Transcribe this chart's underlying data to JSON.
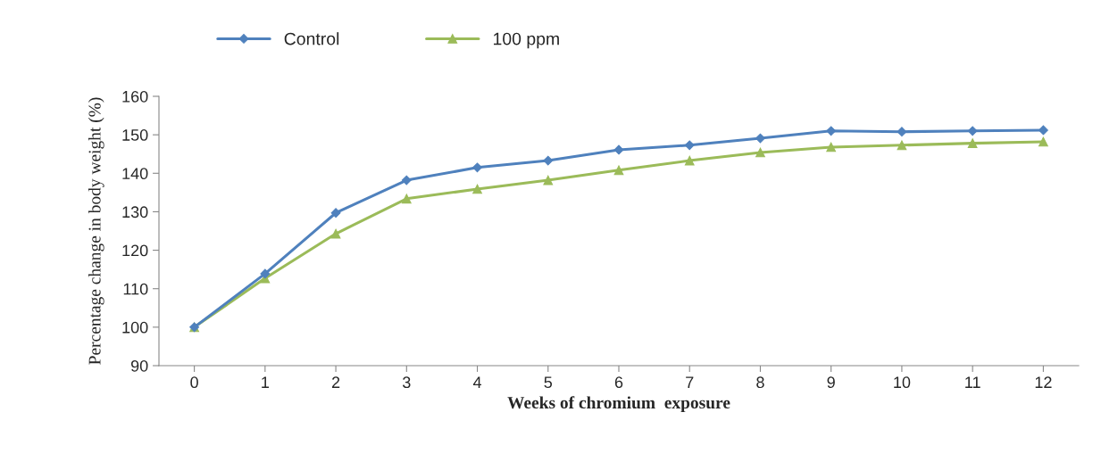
{
  "chart_data": {
    "type": "line",
    "xlabel": "Weeks of chromium  exposure",
    "ylabel": "Percentage change in body weight (%)",
    "categories": [
      "0",
      "1",
      "2",
      "3",
      "4",
      "5",
      "6",
      "7",
      "8",
      "9",
      "10",
      "11",
      "12"
    ],
    "series": [
      {
        "name": "Control",
        "color": "#4f81bd",
        "marker": "diamond",
        "values": [
          100,
          113.9,
          129.7,
          138.2,
          141.5,
          143.3,
          146.1,
          147.3,
          149.1,
          151,
          150.8,
          151,
          151.2
        ]
      },
      {
        "name": "100 ppm",
        "color": "#9bbb59",
        "marker": "triangle",
        "values": [
          100,
          112.7,
          124.3,
          133.4,
          135.9,
          138.2,
          140.8,
          143.3,
          145.4,
          146.8,
          147.3,
          147.8,
          148.2
        ]
      }
    ],
    "ylim": [
      90,
      160
    ],
    "yticks": [
      90,
      100,
      110,
      120,
      130,
      140,
      150,
      160
    ],
    "grid": false,
    "legend": "top",
    "line_style": "solid"
  }
}
